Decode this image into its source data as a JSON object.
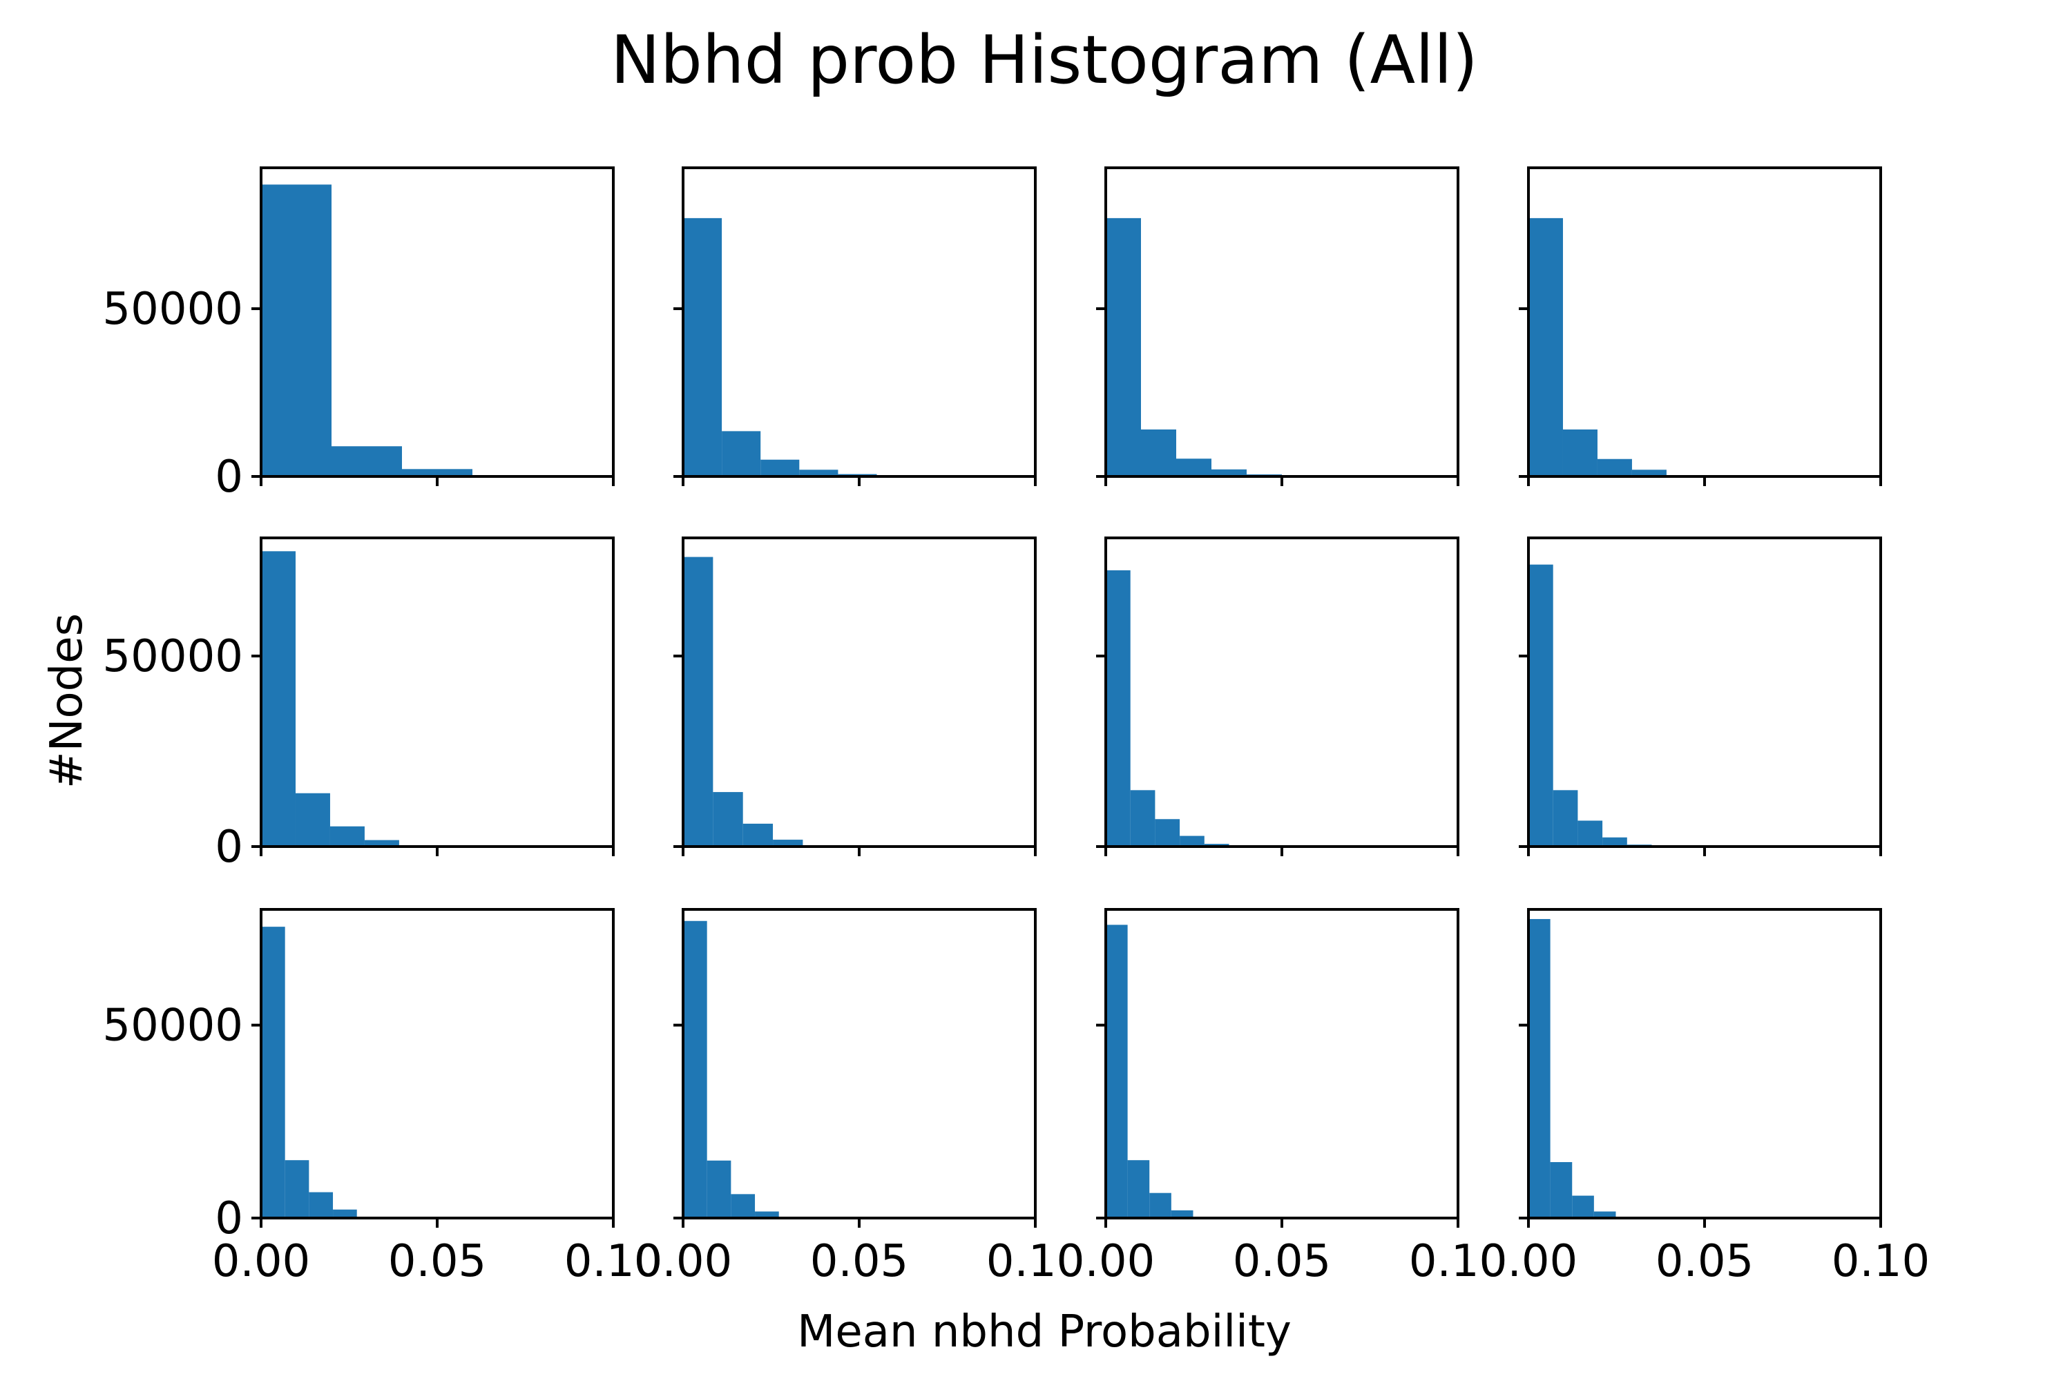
{
  "chart_data": {
    "type": "bar",
    "title": "Nbhd prob Histogram (All)",
    "xlabel": "Mean nbhd Probability",
    "ylabel": "#Nodes",
    "xlim": [
      0,
      0.1
    ],
    "x_ticks": [
      "0.00",
      "0.05",
      "0.10"
    ],
    "y_ticks": [
      {
        "value": 0,
        "label": "0"
      },
      {
        "value": 50000,
        "label": "50000"
      }
    ],
    "rows": 3,
    "cols": 4,
    "grid": false,
    "panels": [
      {
        "row": 0,
        "col": 0,
        "ylim": [
          0,
          92000
        ],
        "bin_edges": [
          0,
          0.02,
          0.04,
          0.06,
          0.08
        ],
        "counts": [
          87000,
          9000,
          2200,
          400
        ]
      },
      {
        "row": 0,
        "col": 1,
        "ylim": [
          0,
          92000
        ],
        "bin_edges": [
          0,
          0.011,
          0.022,
          0.033,
          0.044,
          0.055
        ],
        "counts": [
          77000,
          13500,
          5000,
          2000,
          700
        ]
      },
      {
        "row": 0,
        "col": 2,
        "ylim": [
          0,
          92000
        ],
        "bin_edges": [
          0,
          0.01,
          0.02,
          0.03,
          0.04,
          0.05
        ],
        "counts": [
          77000,
          14000,
          5300,
          2100,
          600
        ]
      },
      {
        "row": 0,
        "col": 3,
        "ylim": [
          0,
          92000
        ],
        "bin_edges": [
          0,
          0.0098,
          0.0196,
          0.0294,
          0.0392
        ],
        "counts": [
          77000,
          14000,
          5200,
          2000
        ]
      },
      {
        "row": 1,
        "col": 0,
        "ylim": [
          0,
          81000
        ],
        "bin_edges": [
          0,
          0.0098,
          0.0196,
          0.0294,
          0.0392
        ],
        "counts": [
          77500,
          14000,
          5300,
          1700
        ]
      },
      {
        "row": 1,
        "col": 1,
        "ylim": [
          0,
          81000
        ],
        "bin_edges": [
          0,
          0.0085,
          0.017,
          0.0255,
          0.034
        ],
        "counts": [
          76000,
          14300,
          6000,
          1800
        ]
      },
      {
        "row": 1,
        "col": 2,
        "ylim": [
          0,
          81000
        ],
        "bin_edges": [
          0,
          0.007,
          0.014,
          0.021,
          0.028,
          0.035
        ],
        "counts": [
          72500,
          14800,
          7200,
          2800,
          700
        ]
      },
      {
        "row": 1,
        "col": 3,
        "ylim": [
          0,
          81000
        ],
        "bin_edges": [
          0,
          0.007,
          0.014,
          0.021,
          0.028,
          0.035
        ],
        "counts": [
          74000,
          14800,
          6800,
          2400,
          500
        ]
      },
      {
        "row": 2,
        "col": 0,
        "ylim": [
          0,
          80000
        ],
        "bin_edges": [
          0,
          0.0068,
          0.0136,
          0.0204,
          0.0272
        ],
        "counts": [
          75500,
          15000,
          6700,
          2200
        ]
      },
      {
        "row": 2,
        "col": 1,
        "ylim": [
          0,
          80000
        ],
        "bin_edges": [
          0,
          0.0068,
          0.0136,
          0.0204,
          0.0272
        ],
        "counts": [
          77000,
          14900,
          6200,
          1700
        ]
      },
      {
        "row": 2,
        "col": 2,
        "ylim": [
          0,
          80000
        ],
        "bin_edges": [
          0,
          0.0062,
          0.0124,
          0.0186,
          0.0248
        ],
        "counts": [
          76000,
          15000,
          6500,
          2000
        ]
      },
      {
        "row": 2,
        "col": 3,
        "ylim": [
          0,
          80000
        ],
        "bin_edges": [
          0,
          0.0062,
          0.0124,
          0.0186,
          0.0248
        ],
        "counts": [
          77500,
          14500,
          5800,
          1700
        ]
      }
    ],
    "colors": {
      "bar": "#1f77b4",
      "axis": "#000000"
    }
  }
}
